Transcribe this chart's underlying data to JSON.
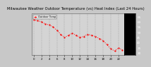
{
  "title": "Milwaukee Weather Outdoor Temperature (vs) Heat Index (Last 24 Hours)",
  "title_fontsize": 3.8,
  "bg_color": "#c8c8c8",
  "plot_bg_color": "#d4d4d4",
  "right_panel_color": "#000000",
  "line_color": "#ff0000",
  "grid_color": "#888888",
  "legend_label": "Outdoor Temp",
  "legend_color": "#ff0000",
  "x_hours": [
    0,
    1,
    2,
    3,
    4,
    5,
    6,
    7,
    8,
    9,
    10,
    11,
    12,
    13,
    14,
    15,
    16,
    17,
    18,
    19,
    20,
    21,
    22,
    23
  ],
  "y_values": [
    62,
    61,
    60,
    58,
    57,
    55,
    52,
    48,
    45,
    47,
    49,
    47,
    45,
    46,
    48,
    47,
    46,
    44,
    42,
    38,
    34,
    32,
    35,
    33
  ],
  "ylim": [
    28,
    68
  ],
  "yticks": [
    30,
    35,
    40,
    45,
    50,
    55,
    60,
    65
  ],
  "ytick_labels": [
    "30",
    "35",
    "40",
    "45",
    "50",
    "55",
    "60",
    "65"
  ],
  "ytick_fontsize": 3.0,
  "xtick_fontsize": 2.8,
  "xtick_step": 2,
  "line_width": 0.7,
  "marker_size": 1.2
}
